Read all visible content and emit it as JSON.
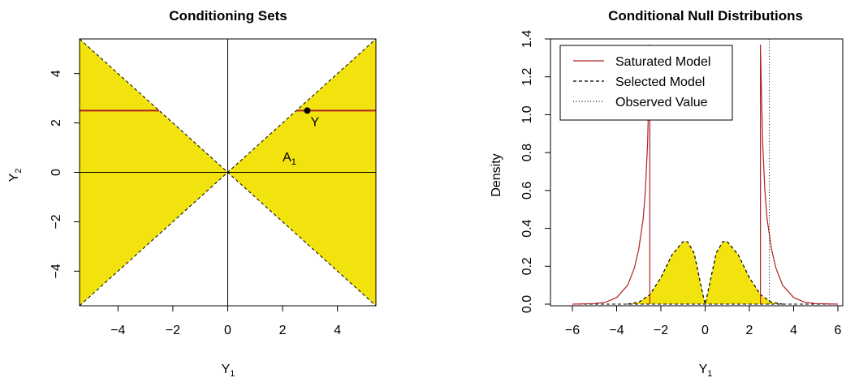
{
  "colors": {
    "fill": "#f2e30e",
    "saturated": "#b22222",
    "selected": "#000000",
    "observed": "#000000",
    "axis": "#000000"
  },
  "chart_data": [
    {
      "type": "area",
      "title": "Conditioning Sets",
      "xlabel": {
        "main": "Y",
        "sub": "1"
      },
      "ylabel": {
        "main": "Y",
        "sub": "2"
      },
      "xlim": [
        -5.4,
        5.4
      ],
      "ylim": [
        -5.4,
        5.4
      ],
      "xticks": [
        -4,
        -2,
        0,
        2,
        4
      ],
      "yticks": [
        -4,
        -2,
        0,
        2,
        4
      ],
      "xtick_labels": [
        "−4",
        "−2",
        "0",
        "2",
        "4"
      ],
      "ytick_labels": [
        "−4",
        "−2",
        "0",
        "2",
        "4"
      ],
      "region_boundaries": [
        "y = x",
        "y = −x"
      ],
      "conditioning_segments": [
        {
          "x0": -5.4,
          "x1": -2.5,
          "y": 2.5
        },
        {
          "x0": 2.5,
          "x1": 5.4,
          "y": 2.5
        }
      ],
      "point": {
        "x": 2.9,
        "y": 2.5,
        "label": "Y"
      },
      "region_label": {
        "main": "A",
        "sub": "1",
        "x": 2.0,
        "y": 0.45
      }
    },
    {
      "type": "line",
      "title": "Conditional Null Distributions",
      "xlabel": {
        "main": "Y",
        "sub": "1"
      },
      "ylabel": "Density",
      "xlim": [
        -6,
        6
      ],
      "ylim": [
        0,
        1.4
      ],
      "xticks": [
        -6,
        -4,
        -2,
        0,
        2,
        4,
        6
      ],
      "yticks": [
        0.0,
        0.2,
        0.4,
        0.6,
        0.8,
        1.0,
        1.2,
        1.4
      ],
      "xtick_labels": [
        "−6",
        "−4",
        "−2",
        "0",
        "2",
        "4",
        "6"
      ],
      "ytick_labels": [
        "0.0",
        "0.2",
        "0.4",
        "0.6",
        "0.8",
        "1.0",
        "1.2",
        "1.4"
      ],
      "legend": {
        "position": "top-left",
        "entries": [
          "Saturated Model",
          "Selected Model",
          "Observed Value"
        ]
      },
      "observed_value": 2.9,
      "series": [
        {
          "name": "Saturated Model",
          "style": "solid",
          "x": [
            -6,
            -5,
            -4.5,
            -4,
            -3.5,
            -3.2,
            -3.0,
            -2.8,
            -2.7,
            -2.6,
            -2.55,
            -2.5,
            -2.5,
            2.5,
            2.5,
            2.55,
            2.6,
            2.7,
            2.8,
            3.0,
            3.2,
            3.5,
            4,
            4.5,
            5,
            6
          ],
          "y": [
            0.0,
            0.003,
            0.01,
            0.035,
            0.1,
            0.19,
            0.29,
            0.45,
            0.6,
            0.85,
            1.1,
            1.37,
            0.0,
            0.0,
            1.37,
            1.1,
            0.85,
            0.6,
            0.45,
            0.29,
            0.19,
            0.1,
            0.035,
            0.01,
            0.003,
            0.0
          ]
        },
        {
          "name": "Selected Model",
          "style": "dashed",
          "x": [
            -3.5,
            -3.0,
            -2.5,
            -2.0,
            -1.5,
            -1.0,
            -0.8,
            -0.5,
            -0.3,
            -0.1,
            0.0,
            0.1,
            0.3,
            0.5,
            0.8,
            1.0,
            1.5,
            2.0,
            2.5,
            3.0,
            3.5
          ],
          "y": [
            0.0,
            0.01,
            0.05,
            0.14,
            0.26,
            0.33,
            0.33,
            0.27,
            0.16,
            0.05,
            0.0,
            0.05,
            0.16,
            0.27,
            0.33,
            0.33,
            0.26,
            0.14,
            0.05,
            0.01,
            0.0
          ]
        }
      ]
    }
  ]
}
